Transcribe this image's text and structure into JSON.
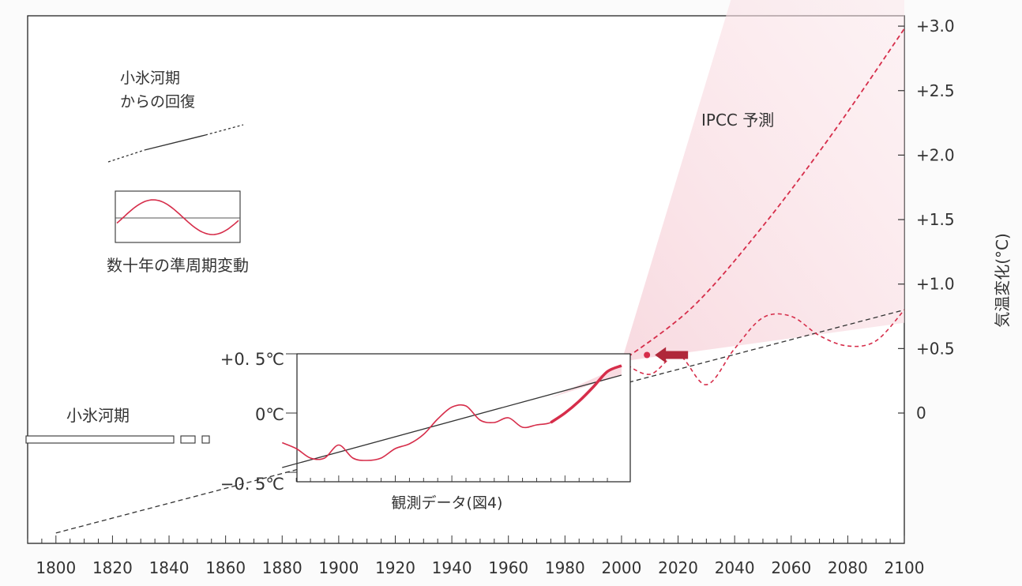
{
  "colors": {
    "accent": "#d62d4a",
    "axis": "#333333",
    "trend": "#333333",
    "arrow": "#b0283a",
    "band": "#f5c9d2",
    "frame": "#222222"
  },
  "labels": {
    "recovery_line1": "小氷河期",
    "recovery_line2": "からの回復",
    "oscillation": "数十年の準周期変動",
    "ipcc": "IPCC 予測",
    "little_ice_age": "小氷河期",
    "observed": "観測データ(図4)",
    "inset_top": "+0. 5℃",
    "inset_mid": "0℃",
    "inset_bottom": "−0. 5℃"
  },
  "chart_data": {
    "type": "line",
    "title": "",
    "xlabel": "",
    "ylabel": "気温変化(°C)",
    "xlim": [
      1790,
      2100
    ],
    "ylim": [
      -1.0,
      3.05
    ],
    "x_ticks": [
      1800,
      1820,
      1840,
      1860,
      1880,
      1900,
      1920,
      1940,
      1960,
      1980,
      2000,
      2020,
      2040,
      2060,
      2080,
      2100
    ],
    "y_ticks": [
      {
        "value": 3.0,
        "label": "+3.0"
      },
      {
        "value": 2.5,
        "label": "+2.5"
      },
      {
        "value": 2.0,
        "label": "+2.0"
      },
      {
        "value": 1.5,
        "label": "+1.5"
      },
      {
        "value": 1.0,
        "label": "+1.0"
      },
      {
        "value": 0.5,
        "label": "+0.5"
      },
      {
        "value": 0.0,
        "label": "0"
      }
    ],
    "series": [
      {
        "name": "小氷河期からの回復 (trend)",
        "style": "dashed",
        "x": [
          1800,
          2100
        ],
        "y": [
          -0.93,
          0.8
        ]
      },
      {
        "name": "IPCC 予測",
        "style": "dashed",
        "x": [
          2000,
          2025,
          2050,
          2075,
          2100
        ],
        "y": [
          0.4,
          0.82,
          1.45,
          2.18,
          2.98
        ]
      },
      {
        "name": "数十年の準周期変動 (projection)",
        "style": "dashed",
        "x": [
          2000,
          2010,
          2020,
          2030,
          2040,
          2050,
          2060,
          2070,
          2080,
          2090,
          2100
        ],
        "y": [
          0.4,
          0.3,
          0.45,
          0.22,
          0.5,
          0.74,
          0.75,
          0.6,
          0.52,
          0.56,
          0.8
        ]
      }
    ],
    "observed": {
      "name": "観測データ(図4)",
      "x": [
        1880,
        1885,
        1890,
        1895,
        1900,
        1905,
        1910,
        1915,
        1920,
        1925,
        1930,
        1935,
        1940,
        1945,
        1950,
        1955,
        1960,
        1965,
        1970,
        1975,
        1980,
        1985,
        1990,
        1995,
        2000
      ],
      "y": [
        -0.25,
        -0.3,
        -0.38,
        -0.38,
        -0.27,
        -0.38,
        -0.4,
        -0.38,
        -0.3,
        -0.26,
        -0.18,
        -0.05,
        0.05,
        0.06,
        -0.06,
        -0.08,
        -0.04,
        -0.12,
        -0.1,
        -0.08,
        0.0,
        0.1,
        0.22,
        0.35,
        0.4
      ]
    },
    "observed_trend": {
      "x": [
        1880,
        2000
      ],
      "y": [
        -0.46,
        0.32
      ]
    },
    "inset_ticks": [
      {
        "value": 0.5,
        "label": "+0. 5℃"
      },
      {
        "value": 0.0,
        "label": "0℃"
      },
      {
        "value": -0.5,
        "label": "−0. 5℃"
      }
    ],
    "highlight": {
      "name": "2009 point",
      "x": 2009,
      "y": 0.45
    },
    "little_ice_age_bars": [
      "long",
      "medium",
      "short"
    ],
    "oscillation_schematic": "sine"
  }
}
